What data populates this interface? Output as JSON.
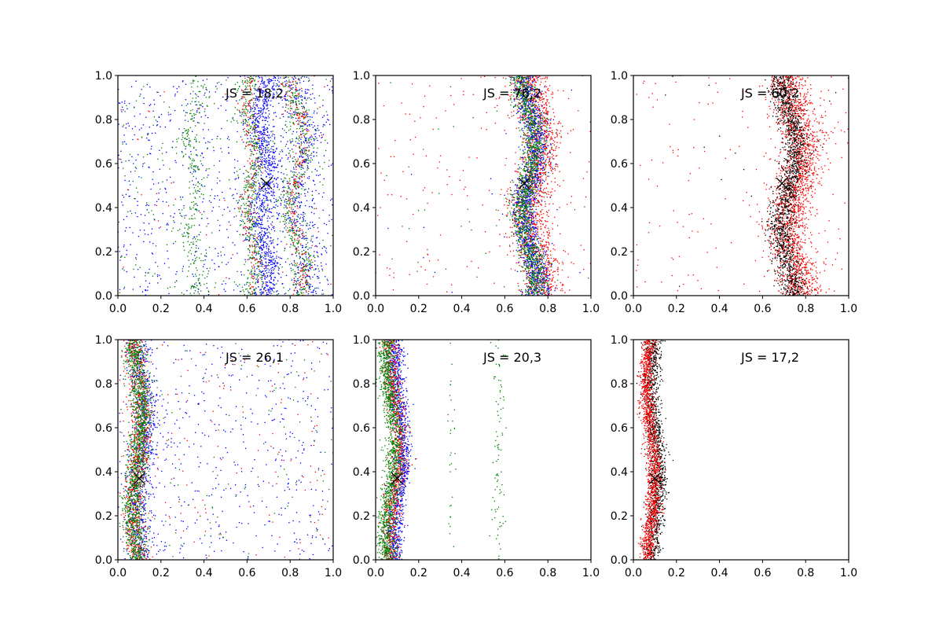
{
  "chart_data": [
    {
      "type": "scatter",
      "title": "",
      "annotation": "JS = 18,2",
      "xlim": [
        0,
        1
      ],
      "ylim": [
        0,
        1
      ],
      "xticks": [
        "0.0",
        "0.2",
        "0.4",
        "0.6",
        "0.8",
        "1.0"
      ],
      "yticks": [
        "0.0",
        "0.2",
        "0.4",
        "0.6",
        "0.8",
        "1.0"
      ],
      "marker": {
        "x": 0.69,
        "y": 0.51,
        "symbol": "x"
      },
      "series": [
        {
          "color": "#0000ff",
          "description": "diffuse background plus bands near x≈0.68 and x≈0.85",
          "count": 2200
        },
        {
          "color": "#008000",
          "description": "bands near x≈0.35, x≈0.62 and x≈0.83 plus background",
          "count": 1500
        },
        {
          "color": "#ff0000",
          "description": "sparse points along bands near x≈0.62 and x≈0.83",
          "count": 500
        }
      ]
    },
    {
      "type": "scatter",
      "title": "",
      "annotation": "JS = 76,2",
      "xlim": [
        0,
        1
      ],
      "ylim": [
        0,
        1
      ],
      "xticks": [
        "0.0",
        "0.2",
        "0.4",
        "0.6",
        "0.8",
        "1.0"
      ],
      "yticks": [
        "0.0",
        "0.2",
        "0.4",
        "0.6",
        "0.8",
        "1.0"
      ],
      "marker": {
        "x": 0.69,
        "y": 0.51,
        "symbol": "x"
      },
      "series": [
        {
          "color": "#ff0000",
          "description": "wide band centered near x≈0.74 plus sparse background",
          "count": 1800
        },
        {
          "color": "#0000ff",
          "description": "band centered near x≈0.72",
          "count": 1400
        },
        {
          "color": "#008000",
          "description": "band centered near x≈0.71",
          "count": 1400
        }
      ]
    },
    {
      "type": "scatter",
      "title": "",
      "annotation": "JS = 60,2",
      "xlim": [
        0,
        1
      ],
      "ylim": [
        0,
        1
      ],
      "xticks": [
        "0.0",
        "0.2",
        "0.4",
        "0.6",
        "0.8",
        "1.0"
      ],
      "yticks": [
        "0.0",
        "0.2",
        "0.4",
        "0.6",
        "0.8",
        "1.0"
      ],
      "marker": {
        "x": 0.69,
        "y": 0.51,
        "symbol": "x"
      },
      "series": [
        {
          "color": "#ff0000",
          "description": "wide band centered near x≈0.75 plus sparse background",
          "count": 2200
        },
        {
          "color": "#000000",
          "description": "band centered near x≈0.72",
          "count": 1500
        }
      ]
    },
    {
      "type": "scatter",
      "title": "",
      "annotation": "JS = 26,1",
      "xlim": [
        0,
        1
      ],
      "ylim": [
        0,
        1
      ],
      "xticks": [
        "0.0",
        "0.2",
        "0.4",
        "0.6",
        "0.8",
        "1.0"
      ],
      "yticks": [
        "0.0",
        "0.2",
        "0.4",
        "0.6",
        "0.8",
        "1.0"
      ],
      "marker": {
        "x": 0.1,
        "y": 0.37,
        "symbol": "x"
      },
      "series": [
        {
          "color": "#0000ff",
          "description": "band near x≈0.11 plus diffuse background",
          "count": 1300
        },
        {
          "color": "#ff0000",
          "description": "band near x≈0.09 plus sparse background",
          "count": 1000
        },
        {
          "color": "#008000",
          "description": "band near x≈0.09 plus sparse background",
          "count": 1500
        }
      ]
    },
    {
      "type": "scatter",
      "title": "",
      "annotation": "JS = 20,3",
      "xlim": [
        0,
        1
      ],
      "ylim": [
        0,
        1
      ],
      "xticks": [
        "0.0",
        "0.2",
        "0.4",
        "0.6",
        "0.8",
        "1.0"
      ],
      "yticks": [
        "0.0",
        "0.2",
        "0.4",
        "0.6",
        "0.8",
        "1.0"
      ],
      "marker": {
        "x": 0.1,
        "y": 0.37,
        "symbol": "x"
      },
      "series": [
        {
          "color": "#0000ff",
          "description": "band near x≈0.11",
          "count": 1100
        },
        {
          "color": "#ff0000",
          "description": "band near x≈0.09",
          "count": 900
        },
        {
          "color": "#008000",
          "description": "band near x≈0.07 plus faint streaks near x≈0.35 and x≈0.57",
          "count": 1500
        }
      ]
    },
    {
      "type": "scatter",
      "title": "",
      "annotation": "JS = 17,2",
      "xlim": [
        0,
        1
      ],
      "ylim": [
        0,
        1
      ],
      "xticks": [
        "0.0",
        "0.2",
        "0.4",
        "0.6",
        "0.8",
        "1.0"
      ],
      "yticks": [
        "0.0",
        "0.2",
        "0.4",
        "0.6",
        "0.8",
        "1.0"
      ],
      "marker": {
        "x": 0.1,
        "y": 0.37,
        "symbol": "x"
      },
      "series": [
        {
          "color": "#000000",
          "description": "band near x≈0.10",
          "count": 1300
        },
        {
          "color": "#ff0000",
          "description": "band near x≈0.08",
          "count": 1400
        }
      ]
    }
  ]
}
